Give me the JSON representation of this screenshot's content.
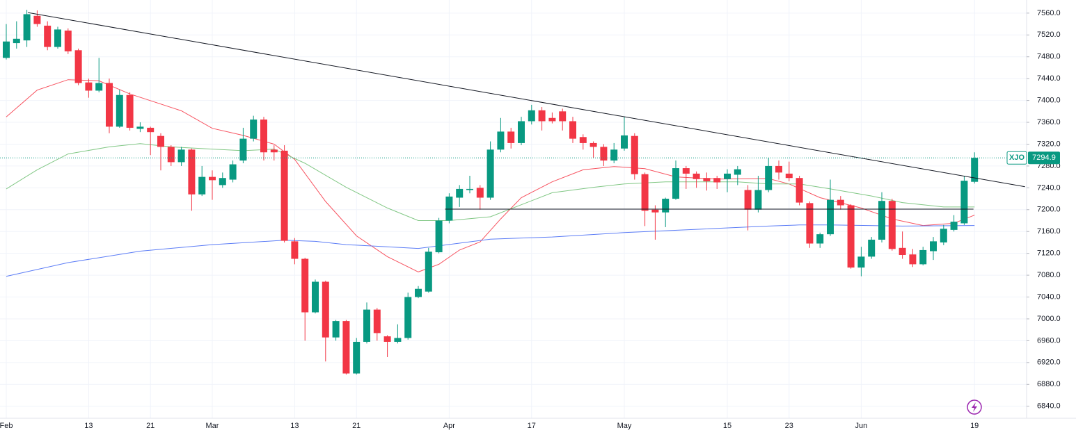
{
  "chart_data": {
    "type": "candlestick",
    "categories": [
      "Feb",
      null,
      null,
      null,
      null,
      null,
      null,
      null,
      "13",
      null,
      null,
      null,
      null,
      null,
      "21",
      null,
      null,
      null,
      null,
      null,
      "Mar",
      null,
      null,
      null,
      null,
      null,
      null,
      null,
      "13",
      null,
      null,
      null,
      null,
      null,
      "21",
      null,
      null,
      null,
      null,
      null,
      null,
      null,
      null,
      "Apr",
      null,
      null,
      null,
      null,
      null,
      null,
      null,
      "17",
      null,
      null,
      null,
      null,
      null,
      null,
      null,
      null,
      "May",
      null,
      null,
      null,
      null,
      null,
      null,
      null,
      null,
      null,
      "15",
      null,
      null,
      null,
      null,
      null,
      "23",
      null,
      null,
      null,
      null,
      null,
      null,
      "Jun",
      null,
      null,
      null,
      null,
      null,
      null,
      null,
      null,
      null,
      null,
      "19"
    ],
    "open": [
      7478,
      7505,
      7510,
      7555,
      7537,
      7498,
      7528,
      7492,
      7433,
      7418,
      7432,
      7352,
      7410,
      7348,
      7350,
      7335,
      7315,
      7287,
      7310,
      7228,
      7260,
      7245,
      7255,
      7290,
      7330,
      7365,
      7310,
      7308,
      7142,
      7110,
      7012,
      7068,
      6966,
      6996,
      6900,
      6958,
      7017,
      6968,
      6958,
      6965,
      7040,
      7050,
      7122,
      7180,
      7222,
      7236,
      7240,
      7222,
      7310,
      7343,
      7322,
      7362,
      7382,
      7368,
      7380,
      7362,
      7333,
      7322,
      7315,
      7290,
      7312,
      7335,
      7265,
      7200,
      7195,
      7220,
      7276,
      7266,
      7258,
      7258,
      7256,
      7264,
      7236,
      7200,
      7236,
      7280,
      7266,
      7258,
      7212,
      7138,
      7155,
      7218,
      7208,
      7094,
      7114,
      7145,
      7216,
      7130,
      7118,
      7100,
      7124,
      7140,
      7163,
      7175,
      7251
    ],
    "high": [
      7540,
      7545,
      7566,
      7565,
      7545,
      7535,
      7532,
      7495,
      7440,
      7478,
      7440,
      7420,
      7415,
      7360,
      7352,
      7340,
      7318,
      7315,
      7312,
      7280,
      7272,
      7268,
      7290,
      7350,
      7372,
      7370,
      7318,
      7318,
      7148,
      7112,
      7072,
      7070,
      6998,
      6998,
      6965,
      7030,
      7020,
      6970,
      6990,
      7048,
      7060,
      7130,
      7185,
      7230,
      7245,
      7262,
      7245,
      7325,
      7368,
      7350,
      7370,
      7392,
      7388,
      7378,
      7385,
      7370,
      7338,
      7325,
      7320,
      7322,
      7370,
      7340,
      7268,
      7208,
      7222,
      7290,
      7280,
      7270,
      7268,
      7262,
      7274,
      7280,
      7245,
      7262,
      7295,
      7290,
      7288,
      7262,
      7215,
      7158,
      7255,
      7225,
      7210,
      7132,
      7150,
      7232,
      7220,
      7160,
      7128,
      7132,
      7150,
      7172,
      7190,
      7262,
      7305
    ],
    "low": [
      7475,
      7495,
      7498,
      7535,
      7492,
      7495,
      7485,
      7428,
      7405,
      7415,
      7340,
      7350,
      7345,
      7342,
      7300,
      7272,
      7280,
      7280,
      7198,
      7225,
      7218,
      7240,
      7250,
      7285,
      7325,
      7290,
      7290,
      7140,
      7100,
      6960,
      7010,
      6922,
      6960,
      6898,
      6898,
      6955,
      6960,
      6930,
      6955,
      6962,
      7038,
      7048,
      7120,
      7175,
      7205,
      7230,
      7200,
      7218,
      7305,
      7312,
      7318,
      7356,
      7345,
      7358,
      7345,
      7322,
      7310,
      7295,
      7280,
      7285,
      7308,
      7255,
      7170,
      7145,
      7168,
      7218,
      7238,
      7240,
      7235,
      7238,
      7232,
      7245,
      7162,
      7195,
      7232,
      7255,
      7252,
      7208,
      7130,
      7130,
      7152,
      7200,
      7092,
      7078,
      7110,
      7140,
      7125,
      7110,
      7095,
      7098,
      7108,
      7135,
      7160,
      7172,
      7248
    ],
    "close": [
      7508,
      7513,
      7558,
      7540,
      7498,
      7530,
      7490,
      7432,
      7418,
      7432,
      7352,
      7410,
      7350,
      7352,
      7342,
      7315,
      7287,
      7310,
      7228,
      7260,
      7254,
      7258,
      7283,
      7330,
      7365,
      7305,
      7305,
      7143,
      7110,
      7012,
      7068,
      6966,
      6996,
      6900,
      6958,
      7017,
      6974,
      6958,
      6965,
      7040,
      7055,
      7123,
      7180,
      7224,
      7238,
      7238,
      7222,
      7310,
      7343,
      7322,
      7362,
      7382,
      7362,
      7362,
      7362,
      7330,
      7322,
      7315,
      7290,
      7310,
      7336,
      7265,
      7198,
      7195,
      7220,
      7276,
      7266,
      7256,
      7252,
      7250,
      7266,
      7274,
      7200,
      7236,
      7280,
      7268,
      7258,
      7213,
      7138,
      7155,
      7218,
      7208,
      7094,
      7114,
      7145,
      7216,
      7128,
      7117,
      7100,
      7126,
      7142,
      7165,
      7178,
      7253,
      7294.9
    ],
    "up_color": "#089981",
    "down_color": "#f23645",
    "overlays": [
      {
        "color": "#f7525f",
        "x": [
          0,
          3,
          6,
          9,
          12,
          17,
          20,
          23,
          26,
          28,
          31,
          34,
          37,
          40,
          42,
          44,
          46,
          48,
          50,
          53,
          56,
          59,
          62,
          65,
          69,
          74,
          76,
          79,
          83,
          86,
          89,
          92,
          94
        ],
        "values": [
          7370,
          7419,
          7438,
          7436,
          7412,
          7381,
          7349,
          7336,
          7320,
          7292,
          7215,
          7152,
          7114,
          7086,
          7100,
          7126,
          7141,
          7183,
          7222,
          7251,
          7273,
          7279,
          7275,
          7260,
          7256,
          7257,
          7247,
          7222,
          7203,
          7183,
          7171,
          7175,
          7190
        ]
      },
      {
        "color": "#81c784",
        "x": [
          0,
          3,
          6,
          10,
          13,
          16,
          20,
          23,
          26,
          29,
          33,
          37,
          40,
          43,
          47,
          50,
          53,
          57,
          60,
          64,
          67,
          71,
          74,
          77,
          80,
          84,
          87,
          91,
          94
        ],
        "values": [
          7238,
          7273,
          7302,
          7315,
          7321,
          7315,
          7311,
          7308,
          7311,
          7285,
          7241,
          7203,
          7180,
          7180,
          7187,
          7209,
          7231,
          7241,
          7247,
          7251,
          7251,
          7251,
          7247,
          7247,
          7238,
          7225,
          7213,
          7205,
          7205
        ]
      },
      {
        "color": "#5b7cf6",
        "x": [
          0,
          6,
          13,
          20,
          27,
          30,
          33,
          40,
          47,
          53,
          60,
          67,
          74,
          77,
          80,
          87,
          94
        ],
        "values": [
          7078,
          7103,
          7124,
          7136,
          7144,
          7142,
          7136,
          7129,
          7146,
          7150,
          7158,
          7164,
          7170,
          7172,
          7172,
          7170,
          7171
        ]
      }
    ],
    "drawn_lines": [
      {
        "color": "#131722",
        "x": [
          2.1,
          98.9
        ],
        "values": [
          7561,
          7242
        ]
      },
      {
        "color": "#131722",
        "x": [
          42.6,
          93.9
        ],
        "values": [
          7201,
          7201
        ]
      }
    ],
    "symbol": "XJO",
    "last_value": 7294.9,
    "ylim": [
      6818,
      7584
    ],
    "yticks": [
      {
        "value": 7560,
        "label": "7560.0"
      },
      {
        "value": 7520,
        "label": "7520.0"
      },
      {
        "value": 7480,
        "label": "7480.0"
      },
      {
        "value": 7440,
        "label": "7440.0"
      },
      {
        "value": 7400,
        "label": "7400.0"
      },
      {
        "value": 7360,
        "label": "7360.0"
      },
      {
        "value": 7320,
        "label": "7320.0"
      },
      {
        "value": 7280,
        "label": "7280.0"
      },
      {
        "value": 7240,
        "label": "7240.0"
      },
      {
        "value": 7200,
        "label": "7200.0"
      },
      {
        "value": 7160,
        "label": "7160.0"
      },
      {
        "value": 7120,
        "label": "7120.0"
      },
      {
        "value": 7080,
        "label": "7080.0"
      },
      {
        "value": 7040,
        "label": "7040.0"
      },
      {
        "value": 7000,
        "label": "7000.0"
      },
      {
        "value": 6960,
        "label": "6960.0"
      },
      {
        "value": 6920,
        "label": "6920.0"
      },
      {
        "value": 6880,
        "label": "6880.0"
      },
      {
        "value": 6840,
        "label": "6840.0"
      }
    ],
    "grid": true
  }
}
